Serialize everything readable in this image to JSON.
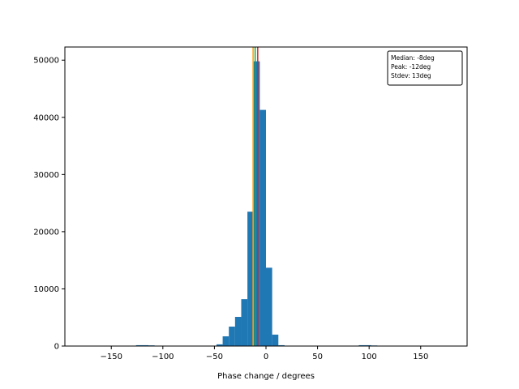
{
  "chart_data": {
    "type": "bar",
    "title": "",
    "xlabel": "Phase change / degrees",
    "ylabel": "",
    "xlim": [
      -195,
      195
    ],
    "ylim": [
      0,
      52300
    ],
    "xticks": [
      -150,
      -100,
      -50,
      0,
      50,
      100,
      150
    ],
    "xtick_labels": [
      "−150",
      "−100",
      "−50",
      "0",
      "50",
      "100",
      "150"
    ],
    "yticks": [
      0,
      10000,
      20000,
      30000,
      40000,
      50000
    ],
    "ytick_labels": [
      "0",
      "10000",
      "20000",
      "30000",
      "40000",
      "50000"
    ],
    "grid": false,
    "bar_color": "#1f77b4",
    "bins": [
      {
        "x0": -126,
        "x1": -114,
        "value": 150
      },
      {
        "x0": -114,
        "x1": -108,
        "value": 120
      },
      {
        "x0": -48,
        "x1": -42,
        "value": 300
      },
      {
        "x0": -42,
        "x1": -36,
        "value": 1700
      },
      {
        "x0": -36,
        "x1": -30,
        "value": 3400
      },
      {
        "x0": -30,
        "x1": -24,
        "value": 5100
      },
      {
        "x0": -24,
        "x1": -18,
        "value": 8200
      },
      {
        "x0": -18,
        "x1": -12,
        "value": 23500
      },
      {
        "x0": -12,
        "x1": -6,
        "value": 49800
      },
      {
        "x0": -6,
        "x1": 0,
        "value": 41300
      },
      {
        "x0": 0,
        "x1": 6,
        "value": 13700
      },
      {
        "x0": 6,
        "x1": 12,
        "value": 2000
      },
      {
        "x0": 12,
        "x1": 18,
        "value": 150
      },
      {
        "x0": 90,
        "x1": 102,
        "value": 150
      },
      {
        "x0": 102,
        "x1": 108,
        "value": 100
      }
    ],
    "vlines": [
      {
        "x": -12.5,
        "color": "#ff9e0e"
      },
      {
        "x": -10.5,
        "color": "#2ca02c"
      },
      {
        "x": -8,
        "color": "#d62728"
      }
    ],
    "annotation": {
      "lines": [
        "Median:  -8deg",
        "Peak: -12deg",
        "Stdev:  13deg"
      ],
      "position": "top-right"
    }
  }
}
